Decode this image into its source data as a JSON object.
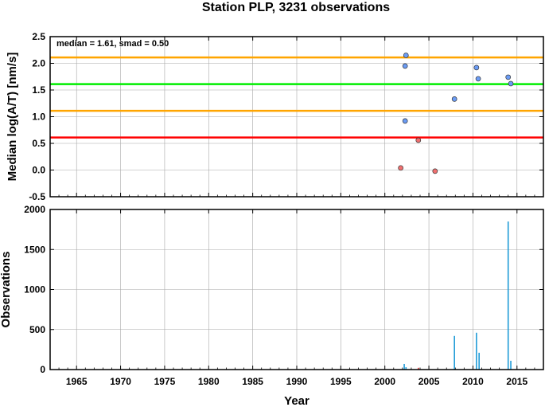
{
  "title": "Station PLP, 3231 observations",
  "chart_data": [
    {
      "type": "scatter",
      "ylabel": "Median log(A/T) [nm/s]",
      "ylim": [
        -0.5,
        2.5
      ],
      "yticks": [
        "-0.5",
        "0.0",
        "0.5",
        "1.0",
        "1.5",
        "2.0",
        "2.5"
      ],
      "xlim": [
        1962,
        2018
      ],
      "grid": true,
      "annotation": "median = 1.61, smad = 0.50",
      "reference_lines": [
        {
          "y": 2.11,
          "color": "#ffa500"
        },
        {
          "y": 1.61,
          "color": "#00ee00"
        },
        {
          "y": 1.11,
          "color": "#ffa500"
        },
        {
          "y": 0.61,
          "color": "#ff0000"
        }
      ],
      "series": [
        {
          "color": "#6b9cf5",
          "x": [
            2002.3,
            2002.4,
            2002.3,
            2007.9,
            2010.4,
            2010.6,
            2014.0,
            2014.3
          ],
          "y": [
            1.95,
            2.15,
            0.92,
            1.33,
            1.92,
            1.71,
            1.74,
            1.62
          ]
        },
        {
          "color": "#f07070",
          "x": [
            2001.8,
            2003.8,
            2005.7
          ],
          "y": [
            0.04,
            0.56,
            -0.02
          ]
        }
      ]
    },
    {
      "type": "bar",
      "xlabel": "Year",
      "ylabel": "Observations",
      "ylim": [
        0,
        2000
      ],
      "yticks": [
        "0",
        "500",
        "1000",
        "1500",
        "2000"
      ],
      "xlim": [
        1962,
        2018
      ],
      "xticks": [
        "1965",
        "1970",
        "1975",
        "1980",
        "1985",
        "1990",
        "1995",
        "2000",
        "2005",
        "2010",
        "2015"
      ],
      "grid": true,
      "series": [
        {
          "color": "#1f9bd7",
          "x": [
            2002.2,
            2002.4,
            2007.9,
            2010.4,
            2010.7,
            2014.0,
            2014.3
          ],
          "values": [
            70,
            30,
            420,
            460,
            210,
            1850,
            110
          ]
        },
        {
          "color": "#e23030",
          "x": [
            2003.8
          ],
          "values": [
            22
          ]
        }
      ]
    }
  ]
}
